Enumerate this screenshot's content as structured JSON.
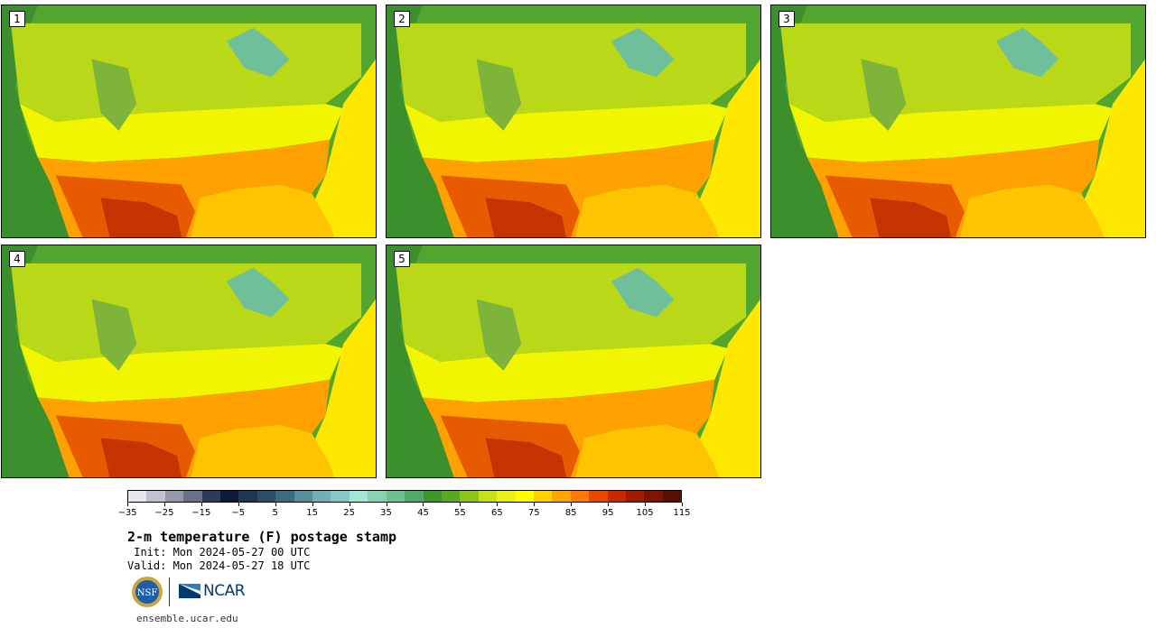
{
  "stamps": [
    {
      "label": "1"
    },
    {
      "label": "2"
    },
    {
      "label": "3"
    },
    {
      "label": "4"
    },
    {
      "label": "5"
    }
  ],
  "legend": {
    "colors": [
      "#e6e6ee",
      "#bfc3cf",
      "#9499aa",
      "#6b7189",
      "#2f3a55",
      "#0c1a33",
      "#1f3552",
      "#2c4d6a",
      "#3e6a80",
      "#588e98",
      "#74aeb2",
      "#86c6c4",
      "#a3e6d6",
      "#86d3b0",
      "#6cc18e",
      "#4fa96b",
      "#3e962e",
      "#5aa625",
      "#8cc418",
      "#c6e01a",
      "#e8f218",
      "#ffff00",
      "#ffd000",
      "#ffa500",
      "#ff7a00",
      "#e84800",
      "#c82a00",
      "#a01a00",
      "#7e1400",
      "#5a1000"
    ],
    "tick_labels": [
      "−35",
      "−25",
      "−15",
      "−5",
      "5",
      "15",
      "25",
      "35",
      "45",
      "55",
      "65",
      "75",
      "85",
      "95",
      "105",
      "115"
    ]
  },
  "title": "2-m temperature (F) postage stamp",
  "init": " Init: Mon 2024-05-27 00 UTC",
  "valid": "Valid: Mon 2024-05-27 18 UTC",
  "logos": {
    "nsf": "NSF",
    "ncar": "NCAR"
  },
  "site": "ensemble.ucar.edu",
  "map_colors": {
    "ocean_north": "#52a52e",
    "ocean_west": "#3b8f2c",
    "atlantic": "#ffe800",
    "gulf": "#ffc400",
    "north_land": "#b9d818",
    "mid_land": "#f2f500",
    "south_land": "#ffa100",
    "hot": "#e85a00",
    "very_hot": "#c43300",
    "mountains": "#7fb43a",
    "lakes": "#6fbf9a"
  }
}
